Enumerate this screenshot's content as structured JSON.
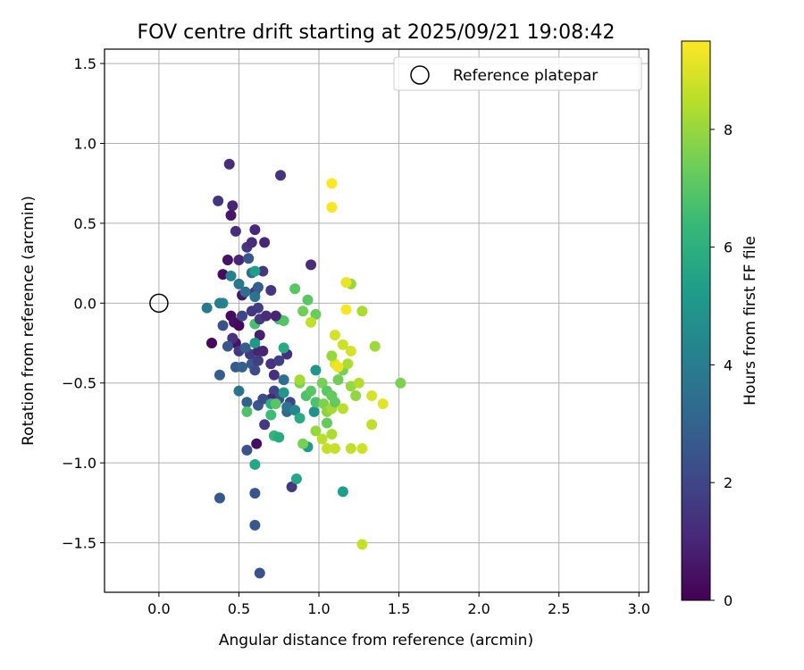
{
  "chart_data": {
    "type": "scatter",
    "title": "FOV centre drift starting at 2025/09/21 19:08:42",
    "xlabel": "Angular distance from reference (arcmin)",
    "ylabel": "Rotation from reference (arcmin)",
    "xlim": [
      -0.34,
      3.06
    ],
    "ylim": [
      -1.81,
      1.59
    ],
    "x_ticks": [
      0.0,
      0.5,
      1.0,
      1.5,
      2.0,
      2.5,
      3.0
    ],
    "x_tick_labels": [
      "0.0",
      "0.5",
      "1.0",
      "1.5",
      "2.0",
      "2.5",
      "3.0"
    ],
    "y_ticks": [
      -1.5,
      -1.0,
      -0.5,
      0.0,
      0.5,
      1.0,
      1.5
    ],
    "y_tick_labels": [
      "−1.5",
      "−1.0",
      "−0.5",
      "0.0",
      "0.5",
      "1.0",
      "1.5"
    ],
    "grid": true,
    "legend": {
      "position": "top-right",
      "entries": [
        "Reference platepar"
      ]
    },
    "reference_point": {
      "x": 0.0,
      "y": 0.0,
      "label": "Reference platepar"
    },
    "colorbar": {
      "label": "Hours from first FF file",
      "range": [
        0,
        9.5
      ],
      "ticks": [
        0,
        2,
        4,
        6,
        8
      ],
      "tick_labels": [
        "0",
        "2",
        "4",
        "6",
        "8"
      ],
      "colormap": "viridis"
    },
    "colormap_stops": [
      "#440154",
      "#482878",
      "#3e4989",
      "#31688e",
      "#26828e",
      "#1f9e89",
      "#35b779",
      "#6ece58",
      "#b5de2b",
      "#fde725"
    ],
    "points": [
      [
        0.33,
        -0.25,
        0.2
      ],
      [
        0.4,
        0.18,
        0.3
      ],
      [
        0.43,
        0.27,
        0.5
      ],
      [
        0.45,
        -0.08,
        0.3
      ],
      [
        0.47,
        -0.12,
        0.4
      ],
      [
        0.5,
        -0.14,
        0.2
      ],
      [
        0.48,
        -0.25,
        0.5
      ],
      [
        0.52,
        0.05,
        0.6
      ],
      [
        0.44,
        0.87,
        1.2
      ],
      [
        0.61,
        -0.88,
        0.4
      ],
      [
        0.46,
        0.61,
        1.0
      ],
      [
        0.45,
        0.55,
        0.6
      ],
      [
        0.48,
        0.45,
        1.2
      ],
      [
        0.5,
        0.27,
        1.0
      ],
      [
        0.55,
        0.35,
        1.5
      ],
      [
        0.58,
        0.38,
        1.2
      ],
      [
        0.6,
        0.46,
        1.1
      ],
      [
        0.66,
        0.38,
        1.0
      ],
      [
        0.76,
        0.8,
        1.4
      ],
      [
        0.95,
        0.24,
        1.2
      ],
      [
        0.65,
        0.2,
        1.5
      ],
      [
        0.7,
        0.08,
        1.5
      ],
      [
        0.6,
        0.07,
        1.6
      ],
      [
        0.62,
        -0.03,
        1.8
      ],
      [
        0.58,
        -0.05,
        1.5
      ],
      [
        0.52,
        -0.08,
        2.0
      ],
      [
        0.46,
        -0.22,
        1.4
      ],
      [
        0.5,
        -0.3,
        1.6
      ],
      [
        0.57,
        -0.32,
        1.6
      ],
      [
        0.62,
        -0.3,
        0.9
      ],
      [
        0.63,
        -0.2,
        0.8
      ],
      [
        0.65,
        -0.3,
        1.0
      ],
      [
        0.7,
        -0.38,
        1.4
      ],
      [
        0.72,
        -0.45,
        1.3
      ],
      [
        0.75,
        -0.36,
        1.8
      ],
      [
        0.8,
        -0.32,
        1.3
      ],
      [
        0.72,
        -0.55,
        2.0
      ],
      [
        0.75,
        -0.6,
        2.4
      ],
      [
        0.82,
        -0.62,
        2.0
      ],
      [
        0.8,
        -0.68,
        3.2
      ],
      [
        0.66,
        -0.76,
        1.6
      ],
      [
        0.7,
        -0.6,
        1.0
      ],
      [
        0.55,
        -0.92,
        2.5
      ],
      [
        0.6,
        -1.19,
        2.5
      ],
      [
        0.6,
        -1.39,
        2.6
      ],
      [
        0.63,
        -1.69,
        2.4
      ],
      [
        0.38,
        -1.22,
        2.6
      ],
      [
        0.83,
        -1.15,
        1.6
      ],
      [
        0.37,
        0.64,
        1.5
      ],
      [
        0.38,
        -0.45,
        2.8
      ],
      [
        0.4,
        -0.14,
        2.4
      ],
      [
        0.43,
        -0.27,
        2.6
      ],
      [
        0.48,
        -0.4,
        2.7
      ],
      [
        0.52,
        -0.4,
        2.9
      ],
      [
        0.54,
        -0.28,
        2.8
      ],
      [
        0.58,
        -0.38,
        2.6
      ],
      [
        0.6,
        -0.42,
        2.2
      ],
      [
        0.62,
        -0.64,
        2.6
      ],
      [
        0.55,
        -0.62,
        2.9
      ],
      [
        0.62,
        0.1,
        2.8
      ],
      [
        0.56,
        0.28,
        2.6
      ],
      [
        0.58,
        0.19,
        3.3
      ],
      [
        0.54,
        0.07,
        3.4
      ],
      [
        0.6,
        0.04,
        3.6
      ],
      [
        0.4,
        0.0,
        4.4
      ],
      [
        0.38,
        0.0,
        4.0
      ],
      [
        0.45,
        0.17,
        4.2
      ],
      [
        0.5,
        0.12,
        3.8
      ],
      [
        0.3,
        -0.03,
        3.8
      ],
      [
        0.5,
        -0.55,
        3.6
      ],
      [
        0.6,
        -0.25,
        5.0
      ],
      [
        0.78,
        -0.48,
        3.5
      ],
      [
        0.8,
        -0.65,
        3.6
      ],
      [
        0.78,
        -0.56,
        5.0
      ],
      [
        0.85,
        -0.67,
        4.4
      ],
      [
        0.97,
        -0.68,
        4.8
      ],
      [
        0.98,
        -0.42,
        5.0
      ],
      [
        0.93,
        -0.9,
        5.2
      ],
      [
        0.88,
        -0.72,
        5.8
      ],
      [
        0.6,
        0.2,
        5.3
      ],
      [
        0.6,
        -0.13,
        6.7
      ],
      [
        0.7,
        -0.7,
        6.5
      ],
      [
        0.72,
        -0.83,
        6.2
      ],
      [
        0.75,
        -0.84,
        5.8
      ],
      [
        0.55,
        -0.68,
        6.8
      ],
      [
        0.6,
        -1.01,
        5.6
      ],
      [
        0.86,
        -1.1,
        5.6
      ],
      [
        1.15,
        -1.18,
        5.3
      ],
      [
        0.78,
        -0.28,
        5.8
      ],
      [
        0.75,
        -0.1,
        6.5
      ],
      [
        0.78,
        -0.11,
        6.9
      ],
      [
        0.85,
        0.09,
        7.0
      ],
      [
        0.9,
        -0.05,
        7.4
      ],
      [
        0.93,
        0.02,
        7.0
      ],
      [
        0.98,
        -0.07,
        7.3
      ],
      [
        0.95,
        -0.12,
        8.6
      ],
      [
        0.88,
        -0.5,
        7.5
      ],
      [
        0.92,
        -0.58,
        6.8
      ],
      [
        0.95,
        -0.55,
        7.0
      ],
      [
        0.98,
        -0.62,
        6.8
      ],
      [
        1.02,
        -0.5,
        7.5
      ],
      [
        1.05,
        -0.55,
        7.0
      ],
      [
        1.08,
        -0.58,
        7.2
      ],
      [
        1.03,
        -0.63,
        7.6
      ],
      [
        1.05,
        -0.68,
        7.8
      ],
      [
        1.08,
        -0.66,
        8.2
      ],
      [
        1.1,
        -0.62,
        7.2
      ],
      [
        1.12,
        -0.48,
        7.4
      ],
      [
        1.15,
        -0.42,
        7.5
      ],
      [
        1.18,
        -0.38,
        8.3
      ],
      [
        1.2,
        -0.52,
        8.0
      ],
      [
        1.23,
        -0.58,
        7.9
      ],
      [
        1.25,
        -0.5,
        8.4
      ],
      [
        1.2,
        -0.3,
        8.9
      ],
      [
        1.15,
        -0.26,
        8.8
      ],
      [
        1.1,
        -0.2,
        8.9
      ],
      [
        1.1,
        -0.38,
        9.1
      ],
      [
        1.12,
        -0.4,
        9.3
      ],
      [
        1.08,
        -0.33,
        8.0
      ],
      [
        1.2,
        0.12,
        8.0
      ],
      [
        1.17,
        0.13,
        9.2
      ],
      [
        1.17,
        -0.04,
        9.4
      ],
      [
        1.27,
        -0.05,
        8.3
      ],
      [
        1.35,
        -0.27,
        8.1
      ],
      [
        1.51,
        -0.5,
        7.6
      ],
      [
        1.33,
        -0.58,
        8.9
      ],
      [
        1.4,
        -0.63,
        9.1
      ],
      [
        1.33,
        -0.76,
        8.6
      ],
      [
        1.27,
        -0.91,
        8.8
      ],
      [
        1.2,
        -0.91,
        8.6
      ],
      [
        1.1,
        -0.91,
        8.7
      ],
      [
        1.05,
        -0.91,
        8.7
      ],
      [
        1.08,
        -0.82,
        8.3
      ],
      [
        1.02,
        -0.85,
        8.5
      ],
      [
        0.98,
        -0.8,
        8.0
      ],
      [
        0.9,
        -0.88,
        7.5
      ],
      [
        1.05,
        -0.75,
        7.2
      ],
      [
        1.15,
        -0.66,
        8.5
      ],
      [
        1.27,
        -1.51,
        8.7
      ],
      [
        1.08,
        0.6,
        9.4
      ],
      [
        1.08,
        0.75,
        9.5
      ],
      [
        0.88,
        -0.48,
        8.2
      ],
      [
        0.65,
        -0.6,
        2.2
      ],
      [
        0.62,
        -0.36,
        1.8
      ],
      [
        0.7,
        -0.63,
        5.9
      ],
      [
        0.73,
        -0.63,
        7.0
      ],
      [
        0.63,
        -0.1,
        1.6
      ],
      [
        0.67,
        -0.08,
        1.2
      ],
      [
        0.73,
        -0.08,
        1.0
      ]
    ]
  }
}
